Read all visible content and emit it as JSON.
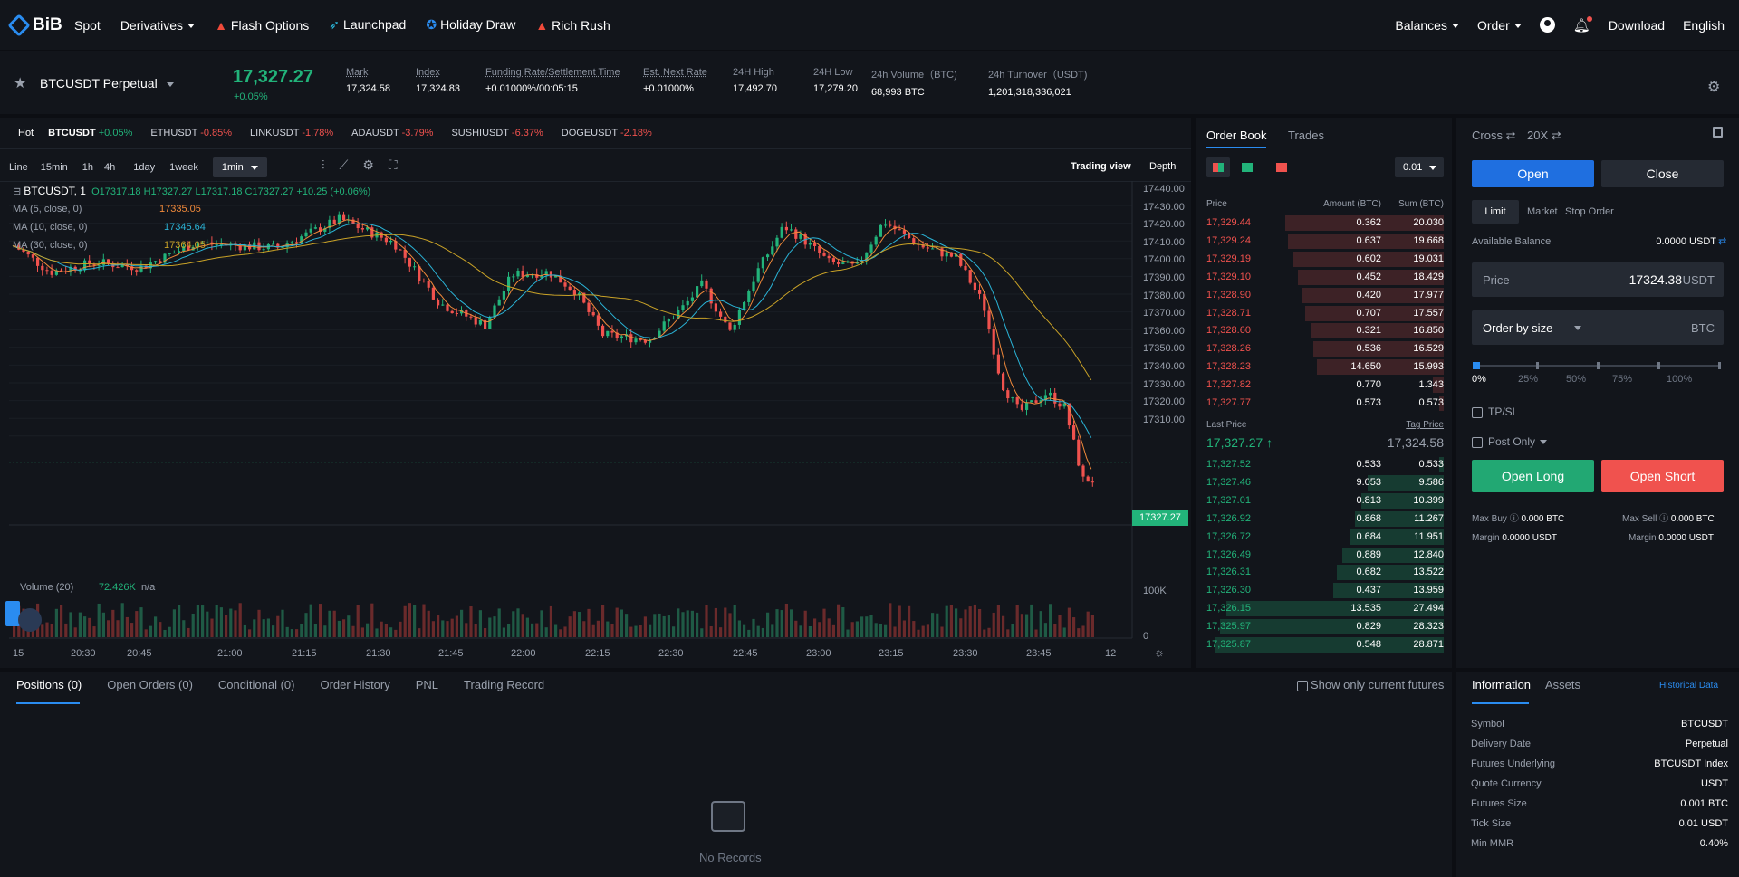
{
  "nav": {
    "logo": "BiB",
    "items": [
      "Spot",
      "Derivatives",
      "Flash Options",
      "Launchpad",
      "Holiday Draw",
      "Rich Rush"
    ],
    "right": [
      "Balances",
      "Order",
      "Download",
      "English"
    ]
  },
  "ticker": {
    "symbol": "BTCUSDT Perpetual",
    "last": "17,327.27",
    "change": "+0.05%",
    "stats": [
      {
        "l": "Mark",
        "v": "17,324.58",
        "u": true
      },
      {
        "l": "Index",
        "v": "17,324.83",
        "u": true
      },
      {
        "l": "Funding Rate/Settlement Time",
        "v": "+0.01000%/00:05:15",
        "u": true
      },
      {
        "l": "Est. Next Rate",
        "v": "+0.01000%",
        "u": true
      },
      {
        "l": "24H High",
        "v": "17,492.70",
        "u": false
      },
      {
        "l": "24H Low",
        "v": "17,279.20",
        "u": false
      },
      {
        "l": "24h Volume（BTC)",
        "v": "68,993 BTC",
        "u": false
      },
      {
        "l": "24h Turnover（USDT)",
        "v": "1,201,318,336,021",
        "u": false
      }
    ]
  },
  "markets": {
    "hot": "Hot",
    "items": [
      {
        "s": "BTCUSDT",
        "c": "+0.05%",
        "up": true
      },
      {
        "s": "ETHUSDT",
        "c": "-0.85%",
        "up": false
      },
      {
        "s": "LINKUSDT",
        "c": "-1.78%",
        "up": false
      },
      {
        "s": "ADAUSDT",
        "c": "-3.79%",
        "up": false
      },
      {
        "s": "SUSHIUSDT",
        "c": "-6.37%",
        "up": false
      },
      {
        "s": "DOGEUSDT",
        "c": "-2.18%",
        "up": false
      }
    ]
  },
  "chart_toolbar": {
    "intervals": [
      "Line",
      "15min",
      "1h",
      "4h",
      "1day",
      "1week",
      "1min"
    ],
    "trading_view": "Trading view",
    "depth": "Depth"
  },
  "chart_legend": {
    "symbol": "BTCUSDT, 1",
    "ohlc": "O17317.18  H17327.27  L17317.18  C17327.27  +10.25 (+0.06%)",
    "ma5": "MA (5, close, 0)",
    "ma5v": "17335.05",
    "ma10": "MA (10, close, 0)",
    "ma10v": "17345.64",
    "ma30": "MA (30, close, 0)",
    "ma30v": "17364.05",
    "volume": "Volume (20)",
    "volv": "72.426K",
    "volna": "n/a"
  },
  "chart_axis": {
    "y": [
      "17440.00",
      "17430.00",
      "17420.00",
      "17410.00",
      "17400.00",
      "17390.00",
      "17380.00",
      "17370.00",
      "17360.00",
      "17350.00",
      "17340.00",
      "17330.00",
      "17320.00",
      "17310.00"
    ],
    "price_tag": "17327.27",
    "vol_y": [
      "100K",
      "0"
    ],
    "x": [
      "15",
      "20:30",
      "20:45",
      "21:00",
      "21:15",
      "21:30",
      "21:45",
      "22:00",
      "22:15",
      "22:30",
      "22:45",
      "23:00",
      "23:15",
      "23:30",
      "23:45",
      "12"
    ]
  },
  "orderbook": {
    "tabs": [
      "Order Book",
      "Trades"
    ],
    "step": "0.01",
    "headers": [
      "Price",
      "Amount (BTC)",
      "Sum (BTC)"
    ],
    "asks": [
      [
        "17,329.44",
        "0.362",
        "20.030"
      ],
      [
        "17,329.24",
        "0.637",
        "19.668"
      ],
      [
        "17,329.19",
        "0.602",
        "19.031"
      ],
      [
        "17,329.10",
        "0.452",
        "18.429"
      ],
      [
        "17,328.90",
        "0.420",
        "17.977"
      ],
      [
        "17,328.71",
        "0.707",
        "17.557"
      ],
      [
        "17,328.60",
        "0.321",
        "16.850"
      ],
      [
        "17,328.26",
        "0.536",
        "16.529"
      ],
      [
        "17,328.23",
        "14.650",
        "15.993"
      ],
      [
        "17,327.82",
        "0.770",
        "1.343"
      ],
      [
        "17,327.77",
        "0.573",
        "0.573"
      ]
    ],
    "last_label": "Last Price",
    "tag_label": "Tag Price",
    "last": "17,327.27 ↑",
    "tag": "17,324.58",
    "bids": [
      [
        "17,327.52",
        "0.533",
        "0.533"
      ],
      [
        "17,327.46",
        "9.053",
        "9.586"
      ],
      [
        "17,327.01",
        "0.813",
        "10.399"
      ],
      [
        "17,326.92",
        "0.868",
        "11.267"
      ],
      [
        "17,326.72",
        "0.684",
        "11.951"
      ],
      [
        "17,326.49",
        "0.889",
        "12.840"
      ],
      [
        "17,326.31",
        "0.682",
        "13.522"
      ],
      [
        "17,326.30",
        "0.437",
        "13.959"
      ],
      [
        "17,326.15",
        "13.535",
        "27.494"
      ],
      [
        "17,325.97",
        "0.829",
        "28.323"
      ],
      [
        "17,325.87",
        "0.548",
        "28.871"
      ]
    ]
  },
  "tradepanel": {
    "cross": "Cross ⇄",
    "lev": "20X ⇄",
    "open": "Open",
    "close": "Close",
    "types": [
      "Limit",
      "Market",
      "Stop Order"
    ],
    "avail_label": "Available Balance",
    "avail": "0.0000 USDT",
    "price_label": "Price",
    "price": "17324.38",
    "usdt": "USDT",
    "size_label": "Order by size",
    "btc": "BTC",
    "pcts": [
      "0%",
      "25%",
      "50%",
      "75%",
      "100%"
    ],
    "tpsl": "TP/SL",
    "postonly": "Post Only",
    "long": "Open Long",
    "short": "Open Short",
    "maxbuy_l": "Max Buy",
    "maxbuy": "0.000 BTC",
    "maxsell_l": "Max Sell",
    "maxsell": "0.000 BTC",
    "margin_l": "Margin",
    "margin1": "0.0000 USDT",
    "margin2": "0.0000 USDT"
  },
  "bottom": {
    "tabs": [
      "Positions (0)",
      "Open Orders (0)",
      "Conditional (0)",
      "Order History",
      "PNL",
      "Trading Record"
    ],
    "filter": "Show only current futures",
    "empty": "No Records"
  },
  "info": {
    "tabs": [
      "Information",
      "Assets"
    ],
    "hist": "Historical Data",
    "rows": [
      [
        "Symbol",
        "BTCUSDT"
      ],
      [
        "Delivery Date",
        "Perpetual"
      ],
      [
        "Futures Underlying",
        "BTCUSDT Index"
      ],
      [
        "Quote Currency",
        "USDT"
      ],
      [
        "Futures Size",
        "0.001 BTC"
      ],
      [
        "Tick Size",
        "0.01 USDT"
      ],
      [
        "Min MMR",
        "0.40%"
      ]
    ]
  },
  "colors": {
    "green": "#22b37a",
    "red": "#f0524e",
    "accent": "#2a8cf0",
    "ma5": "#f0893a",
    "ma10": "#2ab3d6",
    "ma30": "#c9a227"
  }
}
